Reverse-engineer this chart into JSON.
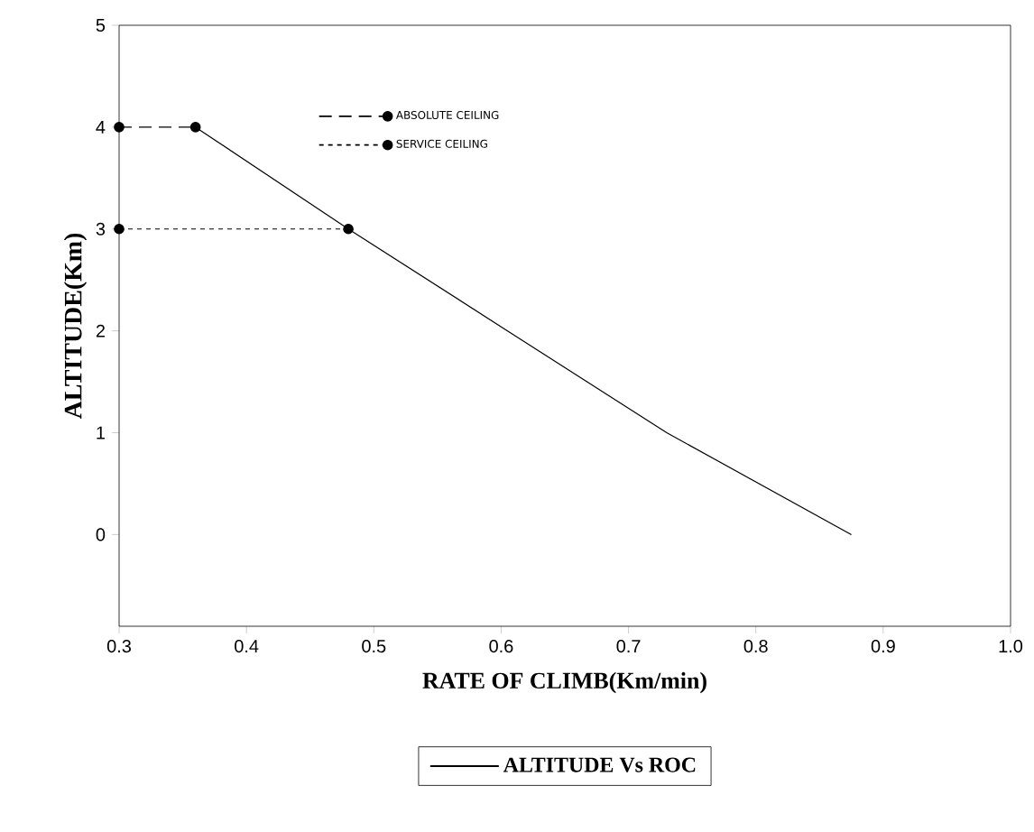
{
  "chart_data": {
    "type": "line",
    "xlabel": "RATE OF CLIMB(Km/min)",
    "ylabel": "ALTITUDE(Km)",
    "xlim": [
      0.3,
      1.0
    ],
    "ylim": [
      -0.9,
      5
    ],
    "xticks": [
      0.3,
      0.4,
      0.5,
      0.6,
      0.7,
      0.8,
      0.9,
      {
        "value": 1.0,
        "label": "1.0"
      }
    ],
    "yticks": [
      0,
      1,
      2,
      3,
      4,
      5
    ],
    "legend": "bottom",
    "series": [
      {
        "name": "ALTITUDE Vs ROC",
        "color": "#000000",
        "x": [
          0.875,
          0.73,
          0.605,
          0.48,
          0.36
        ],
        "values": [
          0,
          1,
          2,
          3,
          4
        ],
        "line_style": "solid",
        "marker": "none"
      },
      {
        "name": "ABSOLUTE CEILING",
        "color": "#000000",
        "x": [
          0.3,
          0.36
        ],
        "values": [
          4,
          4
        ],
        "line_style": "dashed",
        "marker": "circle"
      },
      {
        "name": "SERVICE CEILING",
        "color": "#000000",
        "x": [
          0.3,
          0.48
        ],
        "values": [
          3,
          3
        ],
        "line_style": "dotted",
        "marker": "circle"
      }
    ]
  }
}
